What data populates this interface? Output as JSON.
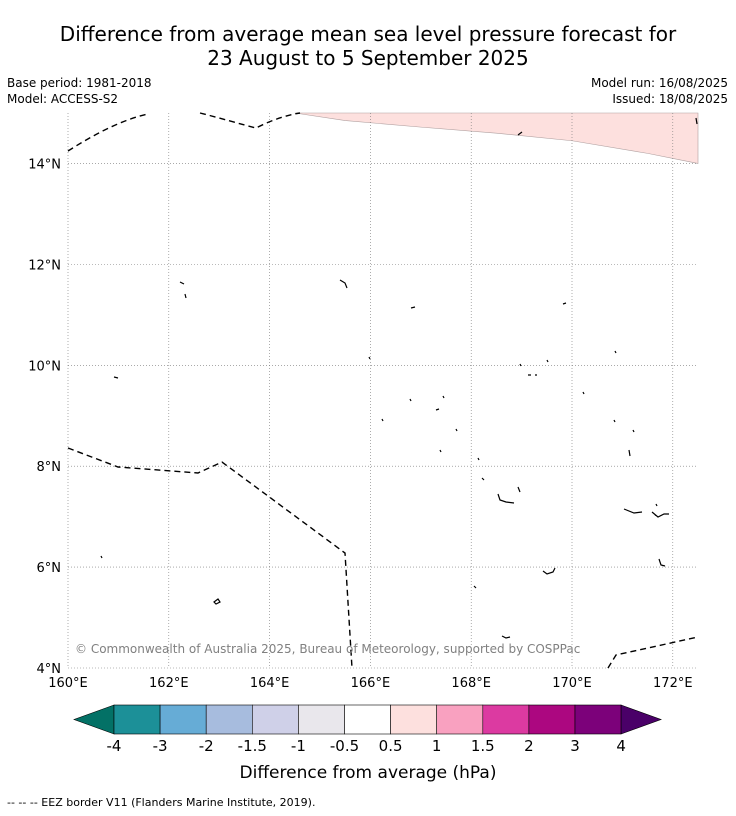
{
  "title": {
    "line1": "Difference from average mean sea level pressure forecast for",
    "line2": "23 August to 5 September 2025"
  },
  "meta": {
    "base_period": "Base period: 1981-2018",
    "model": "Model: ACCESS-S2",
    "model_run": "Model run: 16/08/2025",
    "issued": "Issued: 18/08/2025"
  },
  "map": {
    "lon_range": [
      160,
      172.5
    ],
    "lat_range": [
      4,
      15
    ],
    "x_ticks": [
      "160°E",
      "162°E",
      "164°E",
      "166°E",
      "168°E",
      "170°E",
      "172°E"
    ],
    "y_ticks": [
      "4°N",
      "6°N",
      "8°N",
      "10°N",
      "12°N",
      "14°N"
    ],
    "x_tick_values": [
      160,
      162,
      164,
      166,
      168,
      170,
      172
    ],
    "y_tick_values": [
      4,
      6,
      8,
      10,
      12,
      14
    ],
    "copyright": "© Commonwealth of Australia 2025, Bureau of Meteorology, supported by COSPPac",
    "anomaly_region": {
      "category": "0.5 to 1",
      "color": "#fde0de",
      "boundary": [
        [
          164.5,
          15
        ],
        [
          165.5,
          14.85
        ],
        [
          167,
          14.72
        ],
        [
          168.5,
          14.6
        ],
        [
          170,
          14.45
        ],
        [
          171.5,
          14.2
        ],
        [
          172.5,
          14.0
        ]
      ]
    }
  },
  "colorbar": {
    "title": "Difference from average (hPa)",
    "tick_labels": [
      "-4",
      "-3",
      "-2",
      "-1.5",
      "-1",
      "-0.5",
      "0.5",
      "1",
      "1.5",
      "2",
      "3",
      "4"
    ],
    "colors": [
      "#037166",
      "#1c9098",
      "#66acd6",
      "#a7bcde",
      "#cfd0e8",
      "#e9e7ec",
      "#ffffff",
      "#fde0de",
      "#f9a1c0",
      "#dc3aa1",
      "#ac0780",
      "#7c017a",
      "#4a0068"
    ]
  },
  "footer": "--  --  -- EEZ border V11 (Flanders Marine Institute, 2019)."
}
